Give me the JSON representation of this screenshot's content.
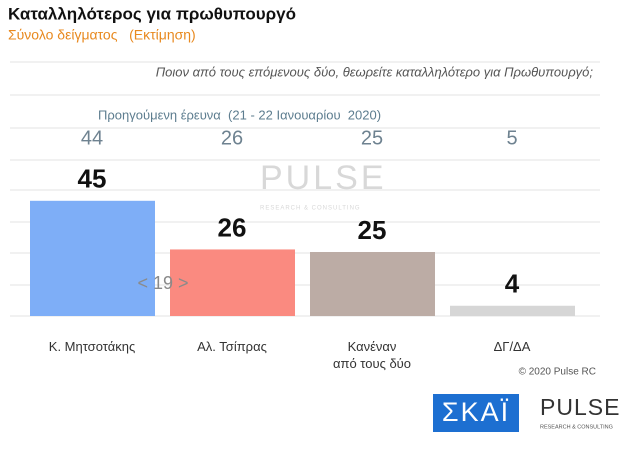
{
  "chart_data": {
    "type": "bar",
    "title": "Καταλληλότερος για πρωθυπουργό",
    "subtitle": "Σύνολο δείγματος   (Εκτίμηση)",
    "question": "Ποιον από τους επόμενους δύο, θεωρείτε καταλληλότερο για Πρωθυπουργό;",
    "previous_label": "Προηγούμενη έρευνα  (21 - 22 Ιανουαρίου  2020)",
    "previous_values": [
      44,
      26,
      25,
      5
    ],
    "categories": [
      "Κ. Μητσοτάκης",
      "Αλ. Τσίπρας",
      "Κανέναν\nαπό τους δύο",
      "ΔΓ/ΔΑ"
    ],
    "values": [
      45,
      26,
      25,
      4
    ],
    "colors": [
      "#7eaef7",
      "#fa8a80",
      "#bcaca5",
      "#d6d6d6"
    ],
    "ylim": [
      0,
      100
    ],
    "annotation": "< 19 >",
    "copyright": "© 2020 Pulse RC",
    "logo_left": "ΣΚΑΪ",
    "logo_right": "PULSE",
    "logo_right_sub": "RESEARCH & CONSULTING"
  }
}
